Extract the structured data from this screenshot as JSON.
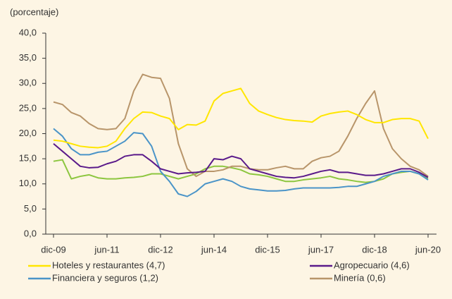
{
  "chart_data": {
    "type": "line",
    "ylabel": "(porcentaje)",
    "categories": [
      "dic-09",
      null,
      null,
      null,
      null,
      null,
      "jun-11",
      null,
      null,
      null,
      null,
      null,
      "dic-12",
      null,
      null,
      null,
      null,
      null,
      "jun-14",
      null,
      null,
      null,
      null,
      null,
      "dic-15",
      null,
      null,
      null,
      null,
      null,
      "jun-17",
      null,
      null,
      null,
      null,
      null,
      "dic-18",
      null,
      null,
      null,
      null,
      null,
      "jun-20"
    ],
    "ylim": [
      0,
      40
    ],
    "yticks": [
      {
        "value": 0,
        "label": "0,0"
      },
      {
        "value": 5,
        "label": "5,0"
      },
      {
        "value": 10,
        "label": "10,0"
      },
      {
        "value": 15,
        "label": "15,0"
      },
      {
        "value": 20,
        "label": "20,0"
      },
      {
        "value": 25,
        "label": "25,0"
      },
      {
        "value": 30,
        "label": "30,0"
      },
      {
        "value": 35,
        "label": "35,0"
      },
      {
        "value": 40,
        "label": "40,0"
      }
    ],
    "series": [
      {
        "name": "Hoteles y restaurantes (4,7)",
        "color": "#ffe600",
        "values": [
          18.7,
          18.5,
          18.0,
          17.5,
          17.3,
          17.2,
          17.5,
          18.5,
          21,
          23,
          24.3,
          24.2,
          23.5,
          23,
          20.8,
          21.8,
          21.7,
          22.5,
          26.5,
          28,
          28.5,
          29,
          26,
          24.5,
          23.8,
          23.2,
          22.8,
          22.6,
          22.5,
          22.3,
          23.5,
          24,
          24.3,
          24.5,
          23.8,
          22.8,
          22.2,
          22.2,
          22.8,
          23,
          23,
          22.5,
          19
        ]
      },
      {
        "name": "Agropecuario (4,6)",
        "color": "#5a1a8a",
        "values": [
          18,
          16.5,
          15,
          13.5,
          13.2,
          13.3,
          14,
          14.5,
          15.5,
          15.8,
          15.8,
          14.5,
          13,
          12.5,
          12,
          12.2,
          12.3,
          12.5,
          15,
          14.8,
          15.5,
          15,
          13,
          12.5,
          12,
          11.5,
          11.3,
          11.2,
          11.5,
          12,
          12.5,
          12.8,
          12.3,
          12.3,
          12,
          11.7,
          11.7,
          12,
          12.5,
          13,
          13,
          12.3,
          11.3
        ]
      },
      {
        "name": "Financiera y seguros (1,2)",
        "color": "#4a94c8",
        "values": [
          21,
          19.5,
          17,
          15.8,
          15.8,
          16.3,
          16.5,
          17.5,
          18.5,
          20.2,
          20,
          17.5,
          12.5,
          10.5,
          8,
          7.5,
          8.5,
          10,
          10.5,
          11,
          10.5,
          9.5,
          9,
          8.8,
          8.6,
          8.6,
          8.7,
          9,
          9.2,
          9.2,
          9.2,
          9.2,
          9.3,
          9.5,
          9.5,
          10,
          10.5,
          11.5,
          12,
          12.5,
          12.5,
          12,
          10.8
        ]
      },
      {
        "name": "Minería (0,6)",
        "color": "#b8956a",
        "values": [
          26.3,
          25.8,
          24.2,
          23.5,
          22,
          21,
          20.8,
          21,
          23,
          28.5,
          31.8,
          31.2,
          31,
          27,
          18,
          13,
          11.5,
          12.5,
          12.5,
          12.8,
          13.5,
          13.5,
          13,
          12.8,
          12.8,
          13.2,
          13.5,
          13,
          13,
          14.5,
          15.2,
          15.5,
          16.5,
          19.5,
          23,
          26,
          28.5,
          21,
          17,
          15,
          13.5,
          12.8,
          11.5
        ]
      },
      {
        "color": "#8cc63f",
        "values": [
          14.5,
          14.8,
          11,
          11.5,
          11.8,
          11.2,
          11,
          11,
          11.2,
          11.3,
          11.5,
          12,
          12,
          11.5,
          11,
          11.5,
          12,
          13,
          13.5,
          13.5,
          13.2,
          12.8,
          12,
          11.8,
          11.5,
          11,
          10.5,
          10.5,
          10.8,
          11,
          11.2,
          11.5,
          11,
          10.8,
          10.5,
          10.3,
          10.5,
          11,
          12,
          12.3,
          12.5,
          12,
          11
        ]
      }
    ]
  }
}
